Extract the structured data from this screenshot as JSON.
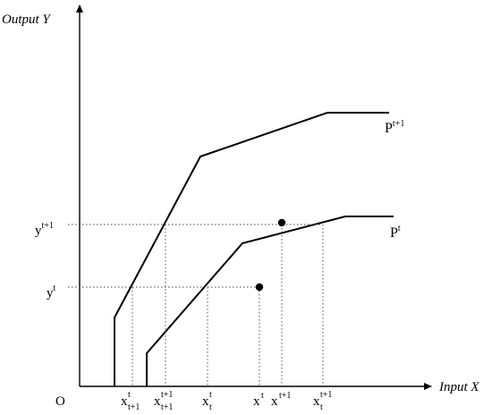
{
  "axes": {
    "y_title": "Output Y",
    "x_title": "Input X",
    "origin": "O"
  },
  "frontiers": {
    "next": {
      "label_base": "P",
      "label_sup": "t+1"
    },
    "current": {
      "label_base": "P",
      "label_sup": "t"
    }
  },
  "y_ticks": {
    "y_next": {
      "base": "y",
      "sup": "t+1"
    },
    "y_cur": {
      "base": "y",
      "sup": "t"
    }
  },
  "x_ticks": {
    "a": {
      "base": "x",
      "sup": "t",
      "sub": "t+1"
    },
    "b": {
      "base": "x",
      "sup": "t+1",
      "sub": "t+1"
    },
    "c": {
      "base": "x",
      "sup": "t",
      "sub": "t"
    },
    "d": {
      "base": "x",
      "sup": "t",
      "sub": ""
    },
    "e": {
      "base": "x",
      "sup": "t+1",
      "sub": ""
    },
    "f": {
      "base": "x",
      "sup": "t+1",
      "sub": "t"
    }
  }
}
